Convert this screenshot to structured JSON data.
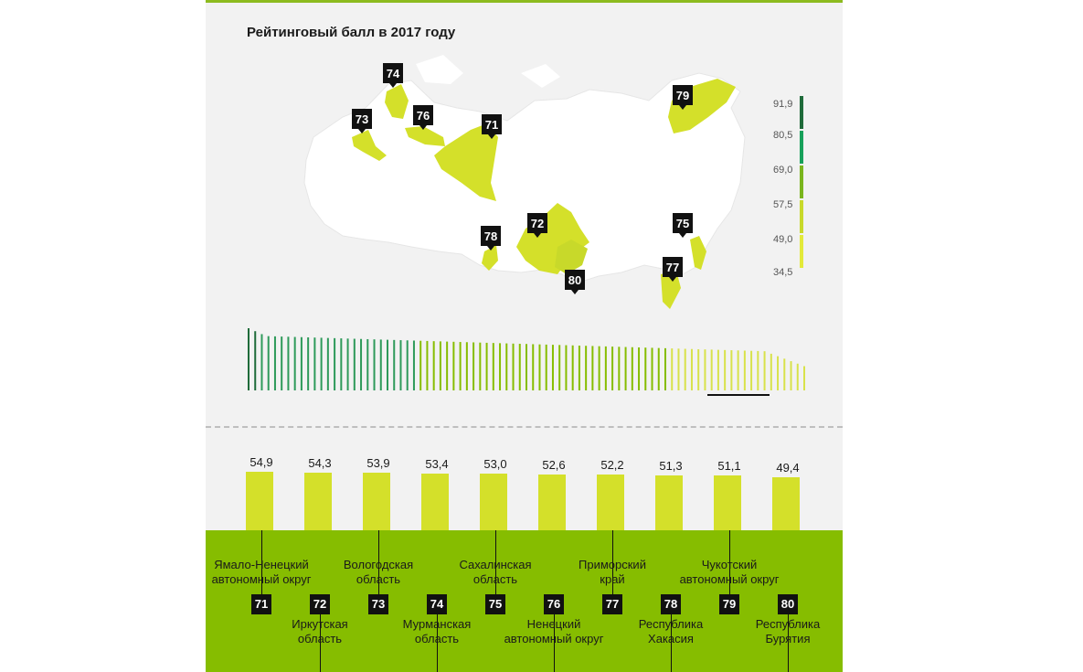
{
  "title": "Рейтинговый балл в 2017 году",
  "colors": {
    "panel": "#f2f2f2",
    "accent_green": "#86bd00",
    "bar_fill": "#d4e02a",
    "scale": [
      "#1f6b3a",
      "#17a05a",
      "#7ab51d",
      "#c8d92a",
      "#e3ea3a"
    ]
  },
  "scale_labels": [
    "91,9",
    "80,5",
    "69,0",
    "57,5",
    "49,0",
    "34,5"
  ],
  "map_markers": [
    {
      "rank": "74"
    },
    {
      "rank": "73"
    },
    {
      "rank": "76"
    },
    {
      "rank": "71"
    },
    {
      "rank": "79"
    },
    {
      "rank": "72"
    },
    {
      "rank": "78"
    },
    {
      "rank": "80"
    },
    {
      "rank": "75"
    },
    {
      "rank": "77"
    }
  ],
  "chart_data": {
    "type": "bar",
    "categories": [
      "71",
      "72",
      "73",
      "74",
      "75",
      "76",
      "77",
      "78",
      "79",
      "80"
    ],
    "value_labels": [
      "54,9",
      "54,3",
      "53,9",
      "53,4",
      "53,0",
      "52,6",
      "52,2",
      "51,3",
      "51,1",
      "49,4"
    ],
    "values": [
      54.9,
      54.3,
      53.9,
      53.4,
      53.0,
      52.6,
      52.2,
      51.3,
      51.1,
      49.4
    ],
    "regions": [
      {
        "rank": "71",
        "name": [
          "Ямало-Ненецкий",
          "автономный округ"
        ]
      },
      {
        "rank": "72",
        "name": [
          "Иркутская",
          "область"
        ]
      },
      {
        "rank": "73",
        "name": [
          "Вологодская",
          "область"
        ]
      },
      {
        "rank": "74",
        "name": [
          "Мурманская",
          "область"
        ]
      },
      {
        "rank": "75",
        "name": [
          "Сахалинская",
          "область"
        ]
      },
      {
        "rank": "76",
        "name": [
          "Ненецкий",
          "автономный округ"
        ]
      },
      {
        "rank": "77",
        "name": [
          "Приморский",
          "край"
        ]
      },
      {
        "rank": "78",
        "name": [
          "Республика",
          "Хакасия"
        ]
      },
      {
        "rank": "79",
        "name": [
          "Чукотский",
          "автономный округ"
        ]
      },
      {
        "rank": "80",
        "name": [
          "Республика",
          "Бурятия"
        ]
      }
    ]
  }
}
